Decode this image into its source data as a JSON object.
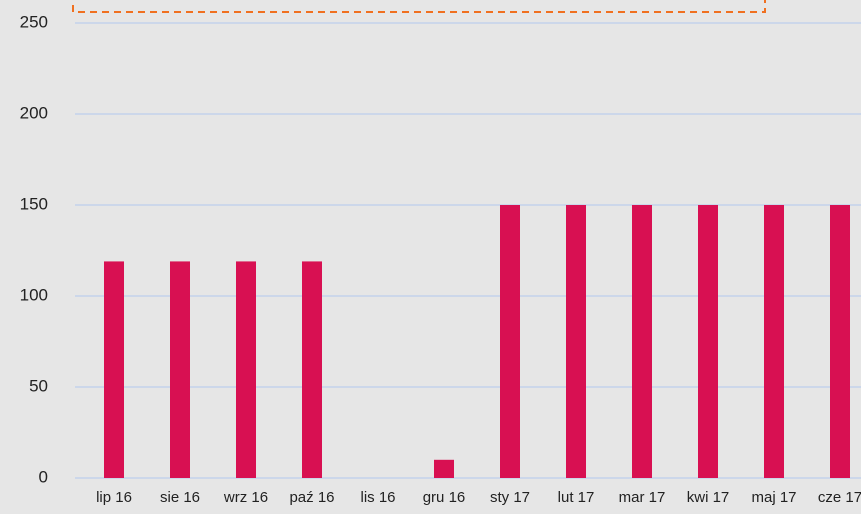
{
  "chart_data": {
    "type": "bar",
    "categories": [
      "lip 16",
      "sie 16",
      "wrz 16",
      "paź 16",
      "lis 16",
      "gru 16",
      "sty 17",
      "lut 17",
      "mar 17",
      "kwi 17",
      "maj 17",
      "cze 17"
    ],
    "values": [
      119,
      119,
      119,
      119,
      0,
      10,
      150,
      150,
      150,
      150,
      150,
      150
    ],
    "color": "#d81052",
    "ylim": [
      0,
      250
    ],
    "yticks": [
      0,
      50,
      100,
      150,
      200,
      250
    ],
    "grid": true
  }
}
